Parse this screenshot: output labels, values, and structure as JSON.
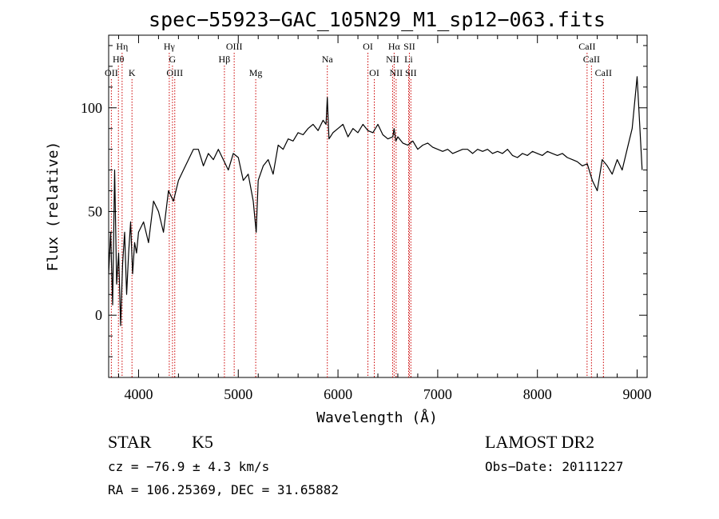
{
  "chart_data": {
    "type": "line",
    "title": "spec−55923−GAC_105N29_M1_sp12−063.fits",
    "xlabel": "Wavelength (Å)",
    "ylabel": "Flux (relative)",
    "xlim": [
      3700,
      9100
    ],
    "ylim": [
      -30,
      135
    ],
    "x_ticks": [
      {
        "value": 4000,
        "label": "4000"
      },
      {
        "value": 5000,
        "label": "5000"
      },
      {
        "value": 6000,
        "label": "6000"
      },
      {
        "value": 7000,
        "label": "7000"
      },
      {
        "value": 8000,
        "label": "8000"
      },
      {
        "value": 9000,
        "label": "9000"
      }
    ],
    "y_ticks": [
      {
        "value": 0,
        "label": "0"
      },
      {
        "value": 50,
        "label": "50"
      },
      {
        "value": 100,
        "label": "100"
      }
    ],
    "grid": false,
    "line_color": "#000000",
    "marker_color": "#cc0000",
    "series": [
      {
        "x": [
          3700,
          3720,
          3740,
          3760,
          3780,
          3800,
          3820,
          3840,
          3860,
          3880,
          3900,
          3920,
          3940,
          3960,
          3980,
          4000,
          4050,
          4100,
          4150,
          4200,
          4250,
          4300,
          4350,
          4400,
          4450,
          4500,
          4550,
          4600,
          4650,
          4700,
          4750,
          4800,
          4850,
          4900,
          4950,
          5000,
          5050,
          5100,
          5150,
          5180,
          5200,
          5250,
          5300,
          5350,
          5400,
          5450,
          5500,
          5550,
          5600,
          5650,
          5700,
          5750,
          5800,
          5850,
          5880,
          5893,
          5910,
          5950,
          6000,
          6050,
          6100,
          6150,
          6200,
          6250,
          6300,
          6350,
          6400,
          6450,
          6500,
          6550,
          6563,
          6580,
          6600,
          6650,
          6700,
          6750,
          6800,
          6850,
          6900,
          6950,
          7000,
          7050,
          7100,
          7150,
          7200,
          7250,
          7300,
          7350,
          7400,
          7450,
          7500,
          7550,
          7600,
          7650,
          7700,
          7750,
          7800,
          7850,
          7900,
          7950,
          8000,
          8050,
          8100,
          8150,
          8200,
          8250,
          8300,
          8350,
          8400,
          8450,
          8500,
          8550,
          8600,
          8650,
          8700,
          8750,
          8800,
          8850,
          8900,
          8950,
          9000,
          9050
        ],
        "y": [
          20,
          40,
          5,
          70,
          15,
          30,
          -5,
          25,
          40,
          10,
          30,
          45,
          20,
          35,
          30,
          40,
          45,
          35,
          55,
          50,
          40,
          60,
          55,
          65,
          70,
          75,
          80,
          80,
          72,
          78,
          75,
          80,
          75,
          70,
          78,
          76,
          65,
          68,
          55,
          40,
          65,
          72,
          75,
          68,
          82,
          80,
          85,
          84,
          88,
          87,
          90,
          92,
          89,
          94,
          92,
          105,
          85,
          88,
          90,
          92,
          86,
          90,
          88,
          92,
          89,
          88,
          92,
          87,
          85,
          86,
          90,
          84,
          86,
          83,
          82,
          84,
          80,
          82,
          83,
          81,
          80,
          79,
          80,
          78,
          79,
          80,
          80,
          78,
          80,
          79,
          80,
          78,
          79,
          78,
          80,
          77,
          76,
          78,
          77,
          79,
          78,
          77,
          79,
          78,
          77,
          78,
          76,
          75,
          74,
          72,
          73,
          65,
          60,
          75,
          72,
          68,
          75,
          70,
          80,
          90,
          115,
          70
        ]
      }
    ],
    "lines": [
      {
        "name": "OII",
        "x": 3727,
        "row": 3
      },
      {
        "name": "Hθ",
        "x": 3798,
        "row": 2
      },
      {
        "name": "Hη",
        "x": 3835,
        "row": 1
      },
      {
        "name": "K",
        "x": 3934,
        "row": 3
      },
      {
        "name": "Hγ",
        "x": 4308,
        "row": 1
      },
      {
        "name": "G",
        "x": 4340,
        "row": 2
      },
      {
        "name": "OIII",
        "x": 4363,
        "row": 3
      },
      {
        "name": "Hβ",
        "x": 4861,
        "row": 2
      },
      {
        "name": "OIII",
        "x": 4959,
        "row": 1
      },
      {
        "name": "Mg",
        "x": 5175,
        "row": 3
      },
      {
        "name": "Na",
        "x": 5893,
        "row": 2
      },
      {
        "name": "OI",
        "x": 6300,
        "row": 1
      },
      {
        "name": "OI",
        "x": 6364,
        "row": 3
      },
      {
        "name": "Hα",
        "x": 6563,
        "row": 1
      },
      {
        "name": "NII",
        "x": 6548,
        "row": 2
      },
      {
        "name": "NII",
        "x": 6583,
        "row": 3
      },
      {
        "name": "SII",
        "x": 6716,
        "row": 1
      },
      {
        "name": "Li",
        "x": 6708,
        "row": 2
      },
      {
        "name": "SII",
        "x": 6731,
        "row": 3
      },
      {
        "name": "CaII",
        "x": 8498,
        "row": 1
      },
      {
        "name": "CaII",
        "x": 8542,
        "row": 2
      },
      {
        "name": "CaII",
        "x": 8662,
        "row": 3
      }
    ]
  },
  "info": {
    "class": "STAR",
    "subclass": "K5",
    "redshift": "cz = −76.9 ± 4.3 km/s",
    "coords": "RA = 106.25369, DEC =  31.65882",
    "survey": "LAMOST DR2",
    "obs_date": "Obs−Date: 20111227"
  }
}
